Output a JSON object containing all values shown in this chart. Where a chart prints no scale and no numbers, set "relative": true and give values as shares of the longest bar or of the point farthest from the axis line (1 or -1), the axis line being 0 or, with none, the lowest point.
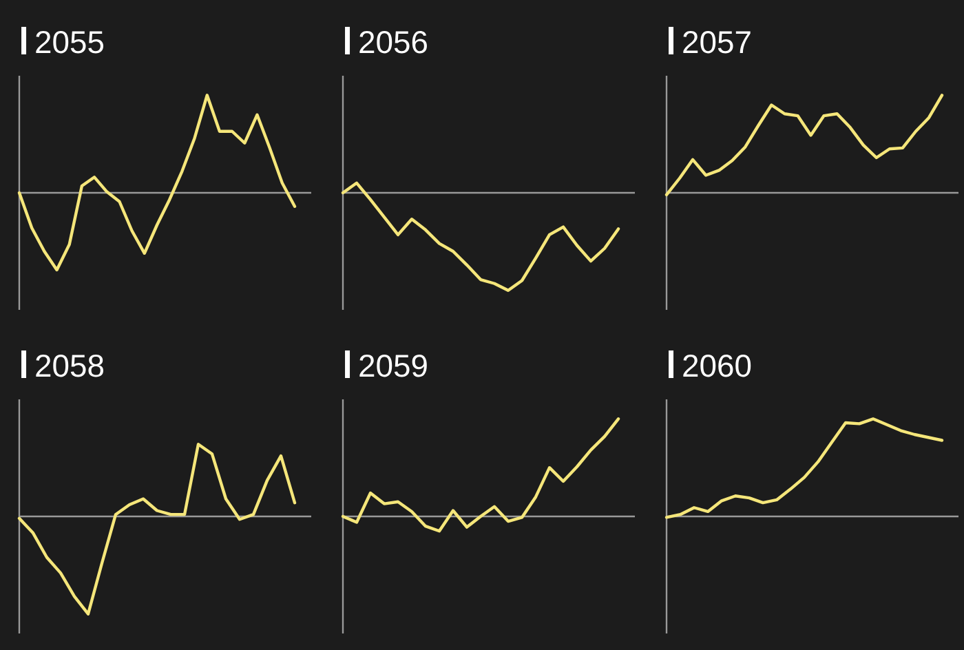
{
  "chart_data": [
    {
      "type": "line",
      "title": "2055",
      "relative": true,
      "color": "#f5e67a",
      "categories": [
        null,
        null,
        null,
        null,
        null,
        null,
        null,
        null,
        null,
        null,
        null,
        null,
        null,
        null,
        null,
        null,
        null,
        null,
        null,
        null,
        null,
        null,
        null
      ],
      "values": [
        0,
        -0.36,
        -0.6,
        -0.79,
        -0.53,
        0.07,
        0.16,
        0.01,
        -0.09,
        -0.39,
        -0.62,
        -0.33,
        -0.07,
        0.22,
        0.56,
        1,
        0.63,
        0.63,
        0.51,
        0.8,
        0.46,
        0.1,
        -0.14
      ]
    },
    {
      "type": "line",
      "title": "2056",
      "relative": true,
      "color": "#f5e67a",
      "categories": [
        null,
        null,
        null,
        null,
        null,
        null,
        null,
        null,
        null,
        null,
        null,
        null,
        null,
        null,
        null,
        null,
        null,
        null,
        null,
        null,
        null
      ],
      "values": [
        0,
        0.1,
        -0.07,
        -0.25,
        -0.43,
        -0.27,
        -0.38,
        -0.52,
        -0.6,
        -0.74,
        -0.89,
        -0.93,
        -1,
        -0.9,
        -0.67,
        -0.43,
        -0.35,
        -0.54,
        -0.7,
        -0.57,
        -0.37
      ]
    },
    {
      "type": "line",
      "title": "2057",
      "relative": true,
      "color": "#f5e67a",
      "categories": [
        null,
        null,
        null,
        null,
        null,
        null,
        null,
        null,
        null,
        null,
        null,
        null,
        null,
        null,
        null,
        null,
        null,
        null,
        null,
        null,
        null,
        null
      ],
      "values": [
        -0.02,
        0.15,
        0.34,
        0.18,
        0.23,
        0.33,
        0.47,
        0.69,
        0.9,
        0.81,
        0.79,
        0.59,
        0.79,
        0.81,
        0.67,
        0.49,
        0.36,
        0.45,
        0.46,
        0.63,
        0.77,
        1
      ]
    },
    {
      "type": "line",
      "title": "2058",
      "relative": true,
      "color": "#f5e67a",
      "categories": [
        null,
        null,
        null,
        null,
        null,
        null,
        null,
        null,
        null,
        null,
        null,
        null,
        null,
        null,
        null,
        null,
        null,
        null,
        null,
        null,
        null
      ],
      "values": [
        -0.02,
        -0.17,
        -0.42,
        -0.58,
        -0.82,
        -1,
        -0.48,
        0.02,
        0.12,
        0.18,
        0.06,
        0.02,
        0.02,
        0.74,
        0.64,
        0.18,
        -0.03,
        0.02,
        0.37,
        0.62,
        0.14
      ]
    },
    {
      "type": "line",
      "title": "2059",
      "relative": true,
      "color": "#f5e67a",
      "categories": [
        null,
        null,
        null,
        null,
        null,
        null,
        null,
        null,
        null,
        null,
        null,
        null,
        null,
        null,
        null,
        null,
        null,
        null,
        null,
        null,
        null
      ],
      "values": [
        0,
        -0.06,
        0.24,
        0.13,
        0.15,
        0.05,
        -0.1,
        -0.15,
        0.06,
        -0.11,
        0,
        0.1,
        -0.05,
        -0.01,
        0.2,
        0.5,
        0.36,
        0.51,
        0.68,
        0.82,
        1
      ]
    },
    {
      "type": "line",
      "title": "2060",
      "relative": true,
      "color": "#f5e67a",
      "categories": [
        null,
        null,
        null,
        null,
        null,
        null,
        null,
        null,
        null,
        null,
        null,
        null,
        null,
        null,
        null,
        null,
        null,
        null,
        null,
        null,
        null
      ],
      "values": [
        -0.01,
        0.02,
        0.09,
        0.05,
        0.16,
        0.21,
        0.19,
        0.14,
        0.17,
        0.28,
        0.4,
        0.56,
        0.76,
        0.96,
        0.95,
        1,
        0.94,
        0.88,
        0.84,
        0.81,
        0.78
      ]
    }
  ]
}
